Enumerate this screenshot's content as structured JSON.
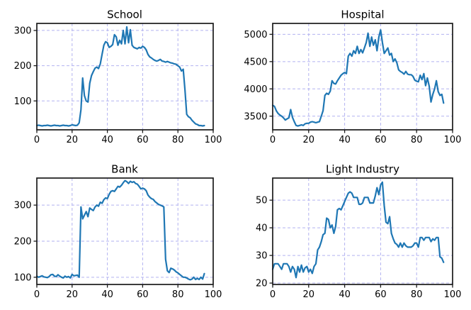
{
  "figure": {
    "background": "#ffffff",
    "line_color": "#1f77b4",
    "grid_color": "#b2b2f0",
    "spine_color": "#1a1a1a"
  },
  "chart_data": [
    {
      "type": "line",
      "title": "School",
      "x_start": 0,
      "x_step": 1,
      "xlim": [
        0,
        100
      ],
      "ylim": [
        18,
        320
      ],
      "x_ticks": [
        0,
        20,
        40,
        60,
        80,
        100
      ],
      "y_ticks": [
        100,
        200,
        300
      ],
      "grid": "dashed",
      "values": [
        30,
        31,
        30,
        29,
        30,
        30,
        31,
        30,
        29,
        30,
        31,
        30,
        30,
        29,
        30,
        31,
        30,
        30,
        29,
        30,
        32,
        31,
        30,
        31,
        38,
        75,
        165,
        115,
        100,
        97,
        150,
        172,
        183,
        193,
        196,
        192,
        205,
        232,
        258,
        268,
        265,
        252,
        255,
        260,
        288,
        282,
        258,
        272,
        262,
        300,
        262,
        310,
        265,
        302,
        258,
        252,
        250,
        248,
        252,
        250,
        255,
        252,
        245,
        232,
        225,
        222,
        218,
        215,
        213,
        215,
        218,
        213,
        212,
        210,
        212,
        210,
        208,
        207,
        205,
        204,
        200,
        196,
        185,
        190,
        130,
        62,
        55,
        52,
        45,
        40,
        35,
        33,
        30,
        30,
        29,
        30
      ]
    },
    {
      "type": "line",
      "title": "Hospital",
      "x_start": 0,
      "x_step": 1,
      "xlim": [
        0,
        100
      ],
      "ylim": [
        3250,
        5200
      ],
      "x_ticks": [
        0,
        20,
        40,
        60,
        80,
        100
      ],
      "y_ticks": [
        3500,
        4000,
        4500,
        5000
      ],
      "grid": "dashed",
      "values": [
        3700,
        3680,
        3600,
        3550,
        3520,
        3500,
        3470,
        3430,
        3450,
        3470,
        3620,
        3480,
        3400,
        3330,
        3320,
        3330,
        3340,
        3330,
        3360,
        3370,
        3370,
        3390,
        3400,
        3390,
        3380,
        3390,
        3400,
        3500,
        3600,
        3880,
        3920,
        3900,
        3960,
        4150,
        4100,
        4090,
        4150,
        4200,
        4250,
        4280,
        4300,
        4280,
        4600,
        4650,
        4600,
        4700,
        4650,
        4780,
        4650,
        4720,
        4660,
        4750,
        4850,
        5020,
        4780,
        4950,
        4800,
        4900,
        4700,
        4950,
        5080,
        4850,
        4650,
        4700,
        4750,
        4620,
        4650,
        4500,
        4550,
        4480,
        4350,
        4320,
        4300,
        4270,
        4320,
        4270,
        4260,
        4260,
        4230,
        4160,
        4140,
        4130,
        4250,
        4170,
        4280,
        4060,
        4200,
        4050,
        3760,
        3900,
        4000,
        4150,
        3950,
        3880,
        3900,
        3740
      ]
    },
    {
      "type": "line",
      "title": "Bank",
      "x_start": 0,
      "x_step": 1,
      "xlim": [
        0,
        100
      ],
      "ylim": [
        80,
        375
      ],
      "x_ticks": [
        0,
        20,
        40,
        60,
        80,
        100
      ],
      "y_ticks": [
        100,
        200,
        300
      ],
      "grid": "dashed",
      "values": [
        103,
        100,
        102,
        104,
        101,
        100,
        99,
        102,
        107,
        108,
        103,
        102,
        107,
        103,
        100,
        98,
        103,
        100,
        102,
        98,
        108,
        104,
        105,
        106,
        100,
        295,
        262,
        272,
        282,
        268,
        292,
        288,
        285,
        295,
        300,
        297,
        308,
        305,
        315,
        320,
        318,
        330,
        338,
        340,
        338,
        345,
        352,
        350,
        355,
        362,
        368,
        365,
        360,
        366,
        363,
        365,
        360,
        358,
        352,
        345,
        347,
        345,
        340,
        328,
        322,
        318,
        316,
        310,
        306,
        302,
        300,
        298,
        295,
        150,
        118,
        113,
        125,
        123,
        120,
        115,
        112,
        108,
        104,
        100,
        100,
        98,
        95,
        93,
        95,
        100,
        94,
        97,
        94,
        100,
        95,
        110
      ]
    },
    {
      "type": "line",
      "title": "Light Industry",
      "x_start": 0,
      "x_step": 1,
      "xlim": [
        0,
        100
      ],
      "ylim": [
        19.5,
        58
      ],
      "x_ticks": [
        0,
        20,
        40,
        60,
        80,
        100
      ],
      "y_ticks": [
        20,
        30,
        40,
        50
      ],
      "grid": "dashed",
      "values": [
        25,
        27,
        27,
        27,
        26,
        25,
        27,
        27,
        27,
        26,
        24,
        26,
        25,
        22,
        26,
        24,
        26.5,
        24,
        25.5,
        26,
        24,
        25,
        23.5,
        26,
        27,
        32,
        33,
        35,
        37.5,
        38,
        43.5,
        43,
        40,
        41,
        38,
        40.5,
        46.5,
        47,
        46.5,
        48,
        49.5,
        51,
        52.5,
        53,
        52.5,
        51,
        51,
        51,
        48.5,
        48.5,
        49,
        51,
        51,
        51,
        49,
        49,
        49,
        51.5,
        54.5,
        52,
        55.5,
        56.5,
        48,
        42,
        41.5,
        44,
        38,
        36,
        34.5,
        34,
        33,
        34.5,
        33,
        34.5,
        33.5,
        33,
        33,
        33,
        33.5,
        34.5,
        34.5,
        33,
        36.5,
        36.5,
        35.5,
        36.5,
        36.5,
        36.5,
        35,
        36,
        35.5,
        36.5,
        36.5,
        29.5,
        29,
        27.5
      ]
    }
  ]
}
